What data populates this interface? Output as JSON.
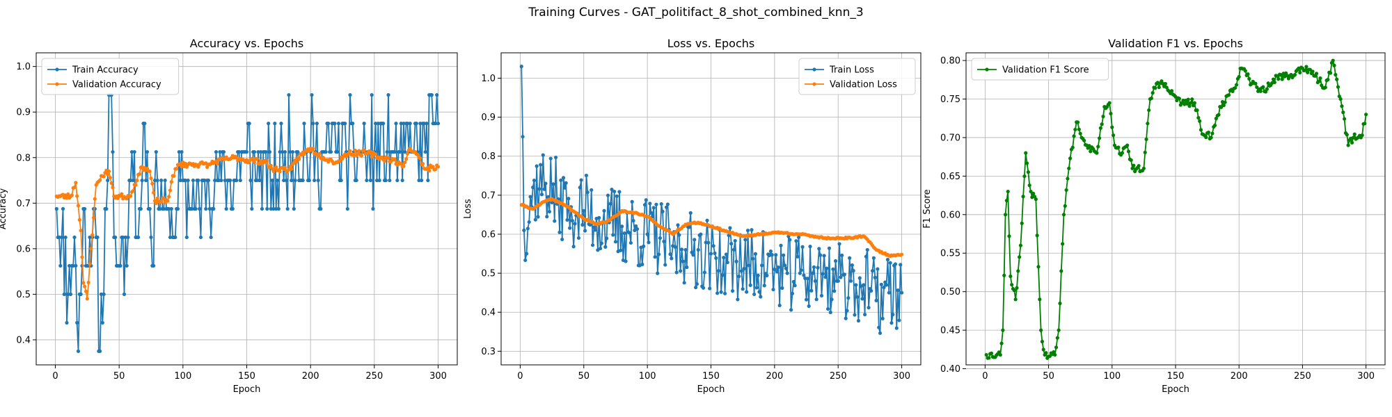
{
  "figure": {
    "suptitle": "Training Curves - GAT_politifact_8_shot_combined_knn_3",
    "colors": {
      "blue": "#1f77b4",
      "orange": "#ff7f0e",
      "green": "#008000",
      "grid": "#b0b0b0"
    }
  },
  "chart_data": [
    {
      "type": "line",
      "title": "Accuracy vs. Epochs",
      "xlabel": "Epoch",
      "ylabel": "Accuracy",
      "xlim": [
        -15,
        315
      ],
      "ylim": [
        0.345,
        1.03
      ],
      "xticks": [
        0,
        50,
        100,
        150,
        200,
        250,
        300
      ],
      "yticks": [
        0.4,
        0.5,
        0.6,
        0.7,
        0.8,
        0.9,
        1.0
      ],
      "grid": true,
      "legend": "upper left",
      "series": [
        {
          "name": "Train Accuracy",
          "color": "#1f77b4",
          "keyframes": [
            [
              1,
              0.69
            ],
            [
              5,
              0.63
            ],
            [
              10,
              0.5
            ],
            [
              15,
              0.63
            ],
            [
              18,
              0.38
            ],
            [
              22,
              0.69
            ],
            [
              26,
              0.56
            ],
            [
              30,
              0.69
            ],
            [
              35,
              0.38
            ],
            [
              40,
              0.69
            ],
            [
              43,
              0.94
            ],
            [
              48,
              0.56
            ],
            [
              55,
              0.63
            ],
            [
              60,
              0.81
            ],
            [
              65,
              0.63
            ],
            [
              70,
              0.88
            ],
            [
              75,
              0.63
            ],
            [
              80,
              0.75
            ],
            [
              85,
              0.69
            ],
            [
              90,
              0.63
            ],
            [
              95,
              0.69
            ],
            [
              100,
              0.75
            ],
            [
              110,
              0.69
            ],
            [
              120,
              0.75
            ],
            [
              130,
              0.75
            ],
            [
              140,
              0.75
            ],
            [
              150,
              0.81
            ],
            [
              160,
              0.75
            ],
            [
              170,
              0.75
            ],
            [
              180,
              0.81
            ],
            [
              190,
              0.81
            ],
            [
              200,
              0.81
            ],
            [
              210,
              0.81
            ],
            [
              220,
              0.81
            ],
            [
              230,
              0.81
            ],
            [
              240,
              0.81
            ],
            [
              250,
              0.81
            ],
            [
              260,
              0.81
            ],
            [
              270,
              0.81
            ],
            [
              280,
              0.81
            ],
            [
              290,
              0.81
            ],
            [
              300,
              0.88
            ]
          ],
          "amplitude": 0.1,
          "range": [
            0.375,
            1.0
          ],
          "quantize": 0.0625,
          "seed": 11
        },
        {
          "name": "Validation Accuracy",
          "color": "#ff7f0e",
          "keyframes": [
            [
              1,
              0.715
            ],
            [
              12,
              0.715
            ],
            [
              16,
              0.745
            ],
            [
              20,
              0.64
            ],
            [
              22,
              0.525
            ],
            [
              25,
              0.49
            ],
            [
              28,
              0.6
            ],
            [
              32,
              0.74
            ],
            [
              36,
              0.76
            ],
            [
              42,
              0.77
            ],
            [
              46,
              0.715
            ],
            [
              58,
              0.715
            ],
            [
              64,
              0.75
            ],
            [
              68,
              0.78
            ],
            [
              74,
              0.77
            ],
            [
              78,
              0.705
            ],
            [
              88,
              0.705
            ],
            [
              92,
              0.76
            ],
            [
              97,
              0.785
            ],
            [
              110,
              0.785
            ],
            [
              120,
              0.785
            ],
            [
              125,
              0.79
            ],
            [
              140,
              0.8
            ],
            [
              150,
              0.795
            ],
            [
              165,
              0.79
            ],
            [
              170,
              0.775
            ],
            [
              185,
              0.775
            ],
            [
              190,
              0.8
            ],
            [
              200,
              0.82
            ],
            [
              210,
              0.8
            ],
            [
              220,
              0.79
            ],
            [
              230,
              0.81
            ],
            [
              245,
              0.81
            ],
            [
              255,
              0.8
            ],
            [
              265,
              0.795
            ],
            [
              272,
              0.78
            ],
            [
              278,
              0.82
            ],
            [
              285,
              0.8
            ],
            [
              290,
              0.775
            ],
            [
              300,
              0.78
            ]
          ],
          "amplitude": 0.006,
          "seed": 23
        }
      ]
    },
    {
      "type": "line",
      "title": "Loss vs. Epochs",
      "xlabel": "Epoch",
      "ylabel": "Loss",
      "xlim": [
        -15,
        315
      ],
      "ylim": [
        0.265,
        1.065
      ],
      "xticks": [
        0,
        50,
        100,
        150,
        200,
        250,
        300
      ],
      "yticks": [
        0.3,
        0.4,
        0.5,
        0.6,
        0.7,
        0.8,
        0.9,
        1.0
      ],
      "grid": true,
      "legend": "upper right",
      "series": [
        {
          "name": "Train Loss",
          "color": "#1f77b4",
          "keyframes": [
            [
              1,
              1.03
            ],
            [
              2,
              0.85
            ],
            [
              3,
              0.61
            ],
            [
              10,
              0.72
            ],
            [
              20,
              0.73
            ],
            [
              30,
              0.69
            ],
            [
              40,
              0.67
            ],
            [
              50,
              0.66
            ],
            [
              60,
              0.64
            ],
            [
              70,
              0.63
            ],
            [
              80,
              0.62
            ],
            [
              90,
              0.61
            ],
            [
              100,
              0.6
            ],
            [
              110,
              0.59
            ],
            [
              120,
              0.57
            ],
            [
              130,
              0.56
            ],
            [
              140,
              0.56
            ],
            [
              150,
              0.55
            ],
            [
              160,
              0.54
            ],
            [
              170,
              0.53
            ],
            [
              180,
              0.52
            ],
            [
              190,
              0.52
            ],
            [
              200,
              0.51
            ],
            [
              210,
              0.5
            ],
            [
              220,
              0.5
            ],
            [
              230,
              0.5
            ],
            [
              240,
              0.49
            ],
            [
              250,
              0.48
            ],
            [
              260,
              0.48
            ],
            [
              270,
              0.47
            ],
            [
              275,
              0.46
            ],
            [
              280,
              0.43
            ],
            [
              290,
              0.45
            ],
            [
              300,
              0.45
            ]
          ],
          "amplitude": 0.1,
          "range": [
            0.3,
            1.03
          ],
          "seed": 37
        },
        {
          "name": "Validation Loss",
          "color": "#ff7f0e",
          "keyframes": [
            [
              1,
              0.675
            ],
            [
              10,
              0.665
            ],
            [
              20,
              0.685
            ],
            [
              25,
              0.69
            ],
            [
              35,
              0.675
            ],
            [
              50,
              0.64
            ],
            [
              60,
              0.625
            ],
            [
              70,
              0.635
            ],
            [
              80,
              0.66
            ],
            [
              90,
              0.655
            ],
            [
              100,
              0.645
            ],
            [
              110,
              0.62
            ],
            [
              120,
              0.6
            ],
            [
              130,
              0.625
            ],
            [
              140,
              0.63
            ],
            [
              150,
              0.62
            ],
            [
              160,
              0.61
            ],
            [
              175,
              0.595
            ],
            [
              190,
              0.6
            ],
            [
              200,
              0.605
            ],
            [
              220,
              0.6
            ],
            [
              230,
              0.595
            ],
            [
              240,
              0.59
            ],
            [
              260,
              0.59
            ],
            [
              270,
              0.595
            ],
            [
              275,
              0.58
            ],
            [
              280,
              0.56
            ],
            [
              290,
              0.545
            ],
            [
              300,
              0.548
            ]
          ],
          "amplitude": 0.002,
          "seed": 41
        }
      ]
    },
    {
      "type": "line",
      "title": "Validation F1 vs. Epochs",
      "xlabel": "Epoch",
      "ylabel": "F1 Score",
      "xlim": [
        -15,
        315
      ],
      "ylim": [
        0.405,
        0.81
      ],
      "xticks": [
        0,
        50,
        100,
        150,
        200,
        250,
        300
      ],
      "yticks": [
        0.4,
        0.45,
        0.5,
        0.55,
        0.6,
        0.65,
        0.7,
        0.75,
        0.8
      ],
      "grid": true,
      "legend": "upper left",
      "series": [
        {
          "name": "Validation F1 Score",
          "color": "#008000",
          "keyframes": [
            [
              1,
              0.418
            ],
            [
              12,
              0.418
            ],
            [
              14,
              0.45
            ],
            [
              16,
              0.6
            ],
            [
              18,
              0.63
            ],
            [
              20,
              0.52
            ],
            [
              24,
              0.49
            ],
            [
              28,
              0.56
            ],
            [
              32,
              0.68
            ],
            [
              36,
              0.63
            ],
            [
              40,
              0.62
            ],
            [
              44,
              0.45
            ],
            [
              47,
              0.418
            ],
            [
              55,
              0.418
            ],
            [
              58,
              0.45
            ],
            [
              62,
              0.6
            ],
            [
              66,
              0.66
            ],
            [
              72,
              0.72
            ],
            [
              76,
              0.7
            ],
            [
              80,
              0.69
            ],
            [
              88,
              0.68
            ],
            [
              94,
              0.74
            ],
            [
              98,
              0.745
            ],
            [
              102,
              0.69
            ],
            [
              108,
              0.68
            ],
            [
              112,
              0.69
            ],
            [
              116,
              0.66
            ],
            [
              125,
              0.66
            ],
            [
              130,
              0.75
            ],
            [
              135,
              0.77
            ],
            [
              140,
              0.77
            ],
            [
              145,
              0.76
            ],
            [
              155,
              0.745
            ],
            [
              165,
              0.745
            ],
            [
              170,
              0.71
            ],
            [
              178,
              0.7
            ],
            [
              185,
              0.74
            ],
            [
              195,
              0.76
            ],
            [
              202,
              0.79
            ],
            [
              210,
              0.77
            ],
            [
              220,
              0.76
            ],
            [
              230,
              0.78
            ],
            [
              240,
              0.78
            ],
            [
              250,
              0.79
            ],
            [
              260,
              0.78
            ],
            [
              268,
              0.765
            ],
            [
              274,
              0.8
            ],
            [
              280,
              0.75
            ],
            [
              286,
              0.69
            ],
            [
              290,
              0.7
            ],
            [
              296,
              0.7
            ],
            [
              300,
              0.73
            ]
          ],
          "amplitude": 0.005,
          "seed": 53
        }
      ]
    }
  ]
}
